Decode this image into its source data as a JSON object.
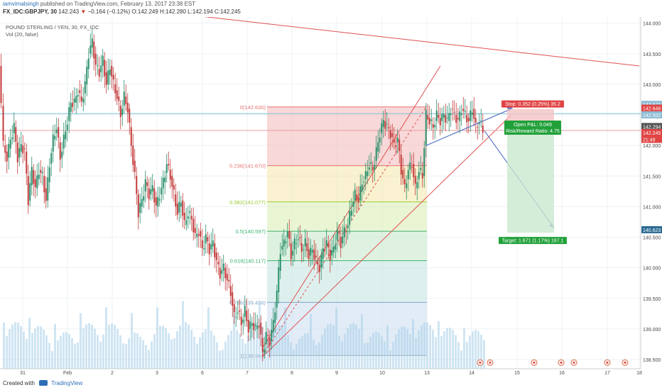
{
  "header": {
    "author": "iamvimalsingh",
    "published": "published on TradingView.com, February 13, 2017 23:38 EST",
    "symbol": "FX_IDC:GBPJPY, 30",
    "last": "142.243",
    "change": "−0.164 (−0.12%)",
    "ohlc": "O:142.249 H:142.280 L:142.194 C:142.245"
  },
  "legend": {
    "title": "POUND STERLING / YEN, 30, FX_IDC",
    "volume": "Vol (20, false)"
  },
  "footer": {
    "created_with": "Created with",
    "brand": "TradingView"
  },
  "colors": {
    "up": "#2a8f6b",
    "down": "#c43a3a",
    "trend": "#e05050",
    "volume": "#a9cfe9",
    "rr_stop": "#e04444",
    "rr_target": "#22a13a"
  },
  "chart_data": {
    "type": "candlestick",
    "symbol": "GBPJPY",
    "interval": "30",
    "ylim": [
      138.35,
      144.1
    ],
    "y_ticks": [
      "144.000",
      "143.500",
      "143.000",
      "142.500",
      "142.000",
      "141.500",
      "141.000",
      "140.500",
      "140.000",
      "139.500",
      "139.000",
      "138.500"
    ],
    "x_ticks": [
      "31",
      "Feb",
      "2",
      "3",
      "6",
      "7",
      "8",
      "9",
      "10",
      "13",
      "14",
      "15",
      "16",
      "17",
      "18"
    ],
    "price_path": [
      [
        0,
        143.3
      ],
      [
        6,
        142.0
      ],
      [
        11,
        141.8
      ],
      [
        16,
        142.1
      ],
      [
        21,
        142.3
      ],
      [
        26,
        141.8
      ],
      [
        31,
        142.0
      ],
      [
        36,
        141.9
      ],
      [
        41,
        141.1
      ],
      [
        46,
        141.6
      ],
      [
        51,
        141.3
      ],
      [
        56,
        141.6
      ],
      [
        61,
        141.5
      ],
      [
        66,
        141.1
      ],
      [
        71,
        141.7
      ],
      [
        76,
        142.1
      ],
      [
        81,
        142.3
      ],
      [
        86,
        141.8
      ],
      [
        91,
        142.1
      ],
      [
        96,
        142.4
      ],
      [
        101,
        142.7
      ],
      [
        106,
        142.7
      ],
      [
        111,
        142.9
      ],
      [
        116,
        142.7
      ],
      [
        121,
        143.0
      ],
      [
        126,
        143.5
      ],
      [
        131,
        143.7
      ],
      [
        136,
        143.3
      ],
      [
        141,
        143.2
      ],
      [
        146,
        143.4
      ],
      [
        151,
        143.0
      ],
      [
        156,
        143.3
      ],
      [
        161,
        143.0
      ],
      [
        166,
        142.8
      ],
      [
        171,
        142.5
      ],
      [
        176,
        142.8
      ],
      [
        181,
        142.6
      ],
      [
        186,
        142.0
      ],
      [
        191,
        141.5
      ],
      [
        196,
        140.9
      ],
      [
        201,
        141.1
      ],
      [
        206,
        141.4
      ],
      [
        211,
        141.2
      ],
      [
        216,
        141.3
      ],
      [
        221,
        141.0
      ],
      [
        226,
        141.2
      ],
      [
        231,
        141.4
      ],
      [
        236,
        141.7
      ],
      [
        241,
        141.5
      ],
      [
        246,
        141.2
      ],
      [
        251,
        140.9
      ],
      [
        256,
        141.1
      ],
      [
        261,
        140.7
      ],
      [
        266,
        140.9
      ],
      [
        271,
        140.8
      ],
      [
        276,
        140.5
      ],
      [
        281,
        140.6
      ],
      [
        286,
        140.3
      ],
      [
        291,
        140.5
      ],
      [
        296,
        140.3
      ],
      [
        301,
        140.4
      ],
      [
        306,
        140.1
      ],
      [
        311,
        139.9
      ],
      [
        316,
        140.0
      ],
      [
        321,
        139.8
      ],
      [
        326,
        139.6
      ],
      [
        331,
        139.2
      ],
      [
        336,
        139.3
      ],
      [
        341,
        139.1
      ],
      [
        346,
        139.3
      ],
      [
        351,
        139.0
      ],
      [
        356,
        139.1
      ],
      [
        361,
        139.0
      ],
      [
        366,
        139.1
      ],
      [
        371,
        138.6
      ],
      [
        376,
        138.9
      ],
      [
        381,
        138.8
      ],
      [
        386,
        139.1
      ],
      [
        391,
        139.6
      ],
      [
        396,
        140.3
      ],
      [
        401,
        140.4
      ],
      [
        406,
        140.6
      ],
      [
        411,
        140.2
      ],
      [
        416,
        140.4
      ],
      [
        421,
        140.5
      ],
      [
        426,
        140.3
      ],
      [
        431,
        140.4
      ],
      [
        436,
        140.2
      ],
      [
        441,
        140.3
      ],
      [
        446,
        140.1
      ],
      [
        451,
        140.0
      ],
      [
        456,
        140.3
      ],
      [
        461,
        140.4
      ],
      [
        466,
        140.2
      ],
      [
        471,
        140.3
      ],
      [
        476,
        140.6
      ],
      [
        481,
        140.4
      ],
      [
        486,
        140.6
      ],
      [
        491,
        140.7
      ],
      [
        496,
        141.0
      ],
      [
        501,
        141.2
      ],
      [
        506,
        141.1
      ],
      [
        511,
        141.4
      ],
      [
        516,
        141.5
      ],
      [
        521,
        141.7
      ],
      [
        526,
        141.6
      ],
      [
        531,
        141.9
      ],
      [
        536,
        142.2
      ],
      [
        541,
        142.4
      ],
      [
        546,
        142.3
      ],
      [
        551,
        142.2
      ],
      [
        556,
        142.0
      ],
      [
        561,
        142.1
      ],
      [
        566,
        141.6
      ],
      [
        571,
        141.3
      ],
      [
        576,
        141.6
      ],
      [
        581,
        141.7
      ],
      [
        586,
        141.3
      ],
      [
        591,
        141.6
      ],
      [
        596,
        141.5
      ],
      [
        601,
        142.5
      ],
      [
        606,
        142.4
      ],
      [
        611,
        142.3
      ],
      [
        616,
        142.5
      ],
      [
        621,
        142.4
      ],
      [
        626,
        142.5
      ],
      [
        631,
        142.4
      ],
      [
        636,
        142.6
      ],
      [
        641,
        142.5
      ],
      [
        646,
        142.4
      ],
      [
        651,
        142.6
      ],
      [
        656,
        142.5
      ],
      [
        661,
        142.4
      ],
      [
        666,
        142.6
      ],
      [
        671,
        142.3
      ],
      [
        676,
        142.4
      ],
      [
        681,
        142.25
      ]
    ],
    "fibonacci": [
      {
        "label": "0(142.630)",
        "price": 142.63,
        "color": "#e57373"
      },
      {
        "label": "0.236(141.670)",
        "price": 141.67,
        "color": "#e57373"
      },
      {
        "label": "0.382(141.077)",
        "price": 141.077,
        "color": "#9acd32"
      },
      {
        "label": "0.5(140.597)",
        "price": 140.597,
        "color": "#3cb371"
      },
      {
        "label": "0.618(140.117)",
        "price": 140.117,
        "color": "#3cb371"
      },
      {
        "label": "0.786(139.436)",
        "price": 139.436,
        "color": "#7fa6c9"
      },
      {
        "label": "1(138.566)",
        "price": 138.566,
        "color": "#8b9bb0"
      }
    ],
    "position": {
      "stop_label": "Stop: 0.352 (0.25%) 35.2",
      "pnl_label": "Open P&L: 0.049",
      "rr_label": "Risk/Reward Ratio: 4.75",
      "target_label": "Target: 1.671 (1.17%) 167.1",
      "entry": 142.245,
      "stop": 142.597,
      "target": 140.574
    },
    "price_badges": [
      {
        "label": "142.672",
        "price": 142.672,
        "color": "#8fbcd4"
      },
      {
        "label": "142.646",
        "price": 142.61,
        "color": "#e04444"
      },
      {
        "label": "142.502",
        "price": 142.5,
        "color": "#8fbcd4"
      },
      {
        "label": "142.294",
        "price": 142.31,
        "color": "#555555"
      },
      {
        "label": "142.245",
        "price": 142.21,
        "color": "#e04444"
      },
      {
        "label": "21:49",
        "price": 142.1,
        "color": "#e04444"
      },
      {
        "label": "140.623",
        "price": 140.623,
        "color": "#2b6a94"
      }
    ],
    "horizontal_lines": [
      142.52,
      142.245
    ],
    "trendlines": [
      {
        "from": [
          140,
          144.3
        ],
        "to": [
          900,
          143.3
        ]
      },
      {
        "from": [
          370,
          138.7
        ],
        "to": [
          620,
          143.3
        ]
      },
      {
        "from": [
          370,
          138.55
        ],
        "to": [
          720,
          142.5
        ]
      },
      {
        "from": [
          370,
          138.566
        ],
        "to": [
          600,
          142.63
        ],
        "dashed": true
      }
    ],
    "wedge": [
      [
        600,
        142.0
      ],
      [
        720,
        142.6
      ]
    ],
    "projection": [
      [
        682,
        142.24
      ],
      [
        780,
        140.65
      ]
    ]
  }
}
